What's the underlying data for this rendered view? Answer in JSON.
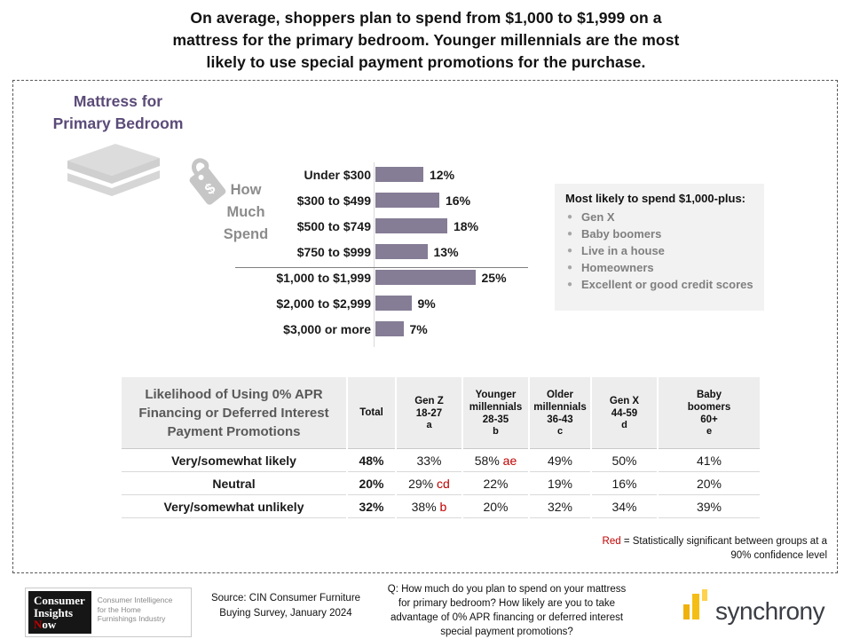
{
  "title": [
    "On average, shoppers plan to spend from $1,000 to $1,999 on a",
    "mattress for the primary bedroom. Younger millennials are the most",
    "likely to use special payment promotions for the purchase."
  ],
  "panel": {
    "heading": [
      "Mattress for",
      "Primary Bedroom"
    ],
    "chart_label": [
      "How",
      "Much",
      "Spend"
    ],
    "chart_data": {
      "type": "bar",
      "orientation": "horizontal",
      "title": "How Much Spend",
      "categories": [
        "Under $300",
        "$300 to $499",
        "$500 to $749",
        "$750 to $999",
        "$1,000 to $1,999",
        "$2,000 to $2,999",
        "$3,000 or more"
      ],
      "values": [
        12,
        16,
        18,
        13,
        25,
        9,
        7
      ],
      "value_labels": [
        "12%",
        "16%",
        "18%",
        "13%",
        "25%",
        "9%",
        "7%"
      ],
      "xlim": [
        0,
        30
      ],
      "grid": false,
      "bar_color": "#857C95"
    },
    "callout": {
      "title": "Most likely to spend $1,000-plus:",
      "items": [
        "Gen X",
        "Baby boomers",
        "Live in a house",
        "Homeowners",
        "Excellent or good credit scores"
      ]
    },
    "table": {
      "title": [
        "Likelihood of Using 0% APR",
        "Financing or Deferred Interest",
        "Payment Promotions"
      ],
      "columns": [
        {
          "lines": [
            "Total"
          ],
          "letter": ""
        },
        {
          "lines": [
            "Gen Z",
            "18-27"
          ],
          "letter": "a"
        },
        {
          "lines": [
            "Younger",
            "millennials",
            "28-35"
          ],
          "letter": "b"
        },
        {
          "lines": [
            "Older",
            "millennials",
            "36-43"
          ],
          "letter": "c"
        },
        {
          "lines": [
            "Gen X",
            "44-59"
          ],
          "letter": "d"
        },
        {
          "lines": [
            "Baby",
            "boomers",
            "60+"
          ],
          "letter": "e"
        }
      ],
      "rows": [
        {
          "label": "Very/somewhat likely",
          "highlight": true,
          "cells": [
            {
              "v": "48%",
              "bold": true
            },
            {
              "v": "33%"
            },
            {
              "v": "58%",
              "sig": "ae"
            },
            {
              "v": "49%"
            },
            {
              "v": "50%"
            },
            {
              "v": "41%"
            }
          ]
        },
        {
          "label": "Neutral",
          "highlight": false,
          "cells": [
            {
              "v": "20%",
              "bold": true
            },
            {
              "v": "29%",
              "sig": "cd"
            },
            {
              "v": "22%"
            },
            {
              "v": "19%"
            },
            {
              "v": "16%"
            },
            {
              "v": "20%"
            }
          ]
        },
        {
          "label": "Very/somewhat unlikely",
          "highlight": false,
          "cells": [
            {
              "v": "32%",
              "bold": true
            },
            {
              "v": "38%",
              "sig": "b"
            },
            {
              "v": "20%"
            },
            {
              "v": "32%"
            },
            {
              "v": "34%"
            },
            {
              "v": "39%"
            }
          ]
        }
      ]
    },
    "note": {
      "red_word": "Red",
      "text": " = Statistically significant between groups at a 90% confidence level"
    }
  },
  "footer": {
    "cin_logo": {
      "line1": "Consumer",
      "line2": "Insights",
      "now_n": "N",
      "now_rest": "ow",
      "tagline": [
        "Consumer Intelligence",
        "for the Home",
        "Furnishings Industry"
      ]
    },
    "source": [
      "Source: CIN Consumer Furniture",
      "Buying Survey, January 2024"
    ],
    "question": [
      "Q: How much do you plan to spend on your mattress",
      "for primary bedroom? How likely are you to take",
      "advantage of 0% APR financing or deferred interest",
      "special payment promotions?"
    ],
    "synchrony_wordmark": "synchrony"
  },
  "colors": {
    "accent_purple": "#5B4B78",
    "bar_purple": "#857C95",
    "significant_red": "#C00000",
    "highlight_cream": "#FCF3DC",
    "callout_gray_bg": "#F2F2F2",
    "table_header_bg": "#EDEDED",
    "gold_dark": "#EFB10C",
    "gold_light": "#FFD24C",
    "gray_text": "#7F7F7F"
  }
}
